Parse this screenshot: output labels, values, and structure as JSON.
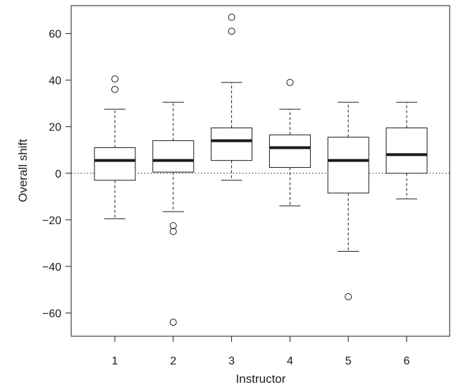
{
  "chart_data": {
    "type": "box",
    "title": "",
    "xlabel": "Instructor",
    "ylabel": "Overall shift",
    "ylim": [
      -70,
      72
    ],
    "yticks": [
      -60,
      -40,
      -20,
      0,
      20,
      40,
      60
    ],
    "ytick_labels": [
      "−60",
      "−40",
      "−20",
      "0",
      "20",
      "40",
      "60"
    ],
    "categories": [
      "1",
      "2",
      "3",
      "4",
      "5",
      "6"
    ],
    "reference_line": {
      "y": 0,
      "style": "dotted"
    },
    "grid": false,
    "boxes": [
      {
        "category": "1",
        "whisker_low": -19.5,
        "q1": -3,
        "median": 5.5,
        "q3": 11,
        "whisker_high": 27.5,
        "outliers": [
          36,
          40.5
        ]
      },
      {
        "category": "2",
        "whisker_low": -16.5,
        "q1": 0.5,
        "median": 5.5,
        "q3": 14,
        "whisker_high": 30.5,
        "outliers": [
          -22.5,
          -25,
          -64
        ]
      },
      {
        "category": "3",
        "whisker_low": -3,
        "q1": 5.5,
        "median": 14,
        "q3": 19.5,
        "whisker_high": 39,
        "outliers": [
          61,
          67
        ]
      },
      {
        "category": "4",
        "whisker_low": -14,
        "q1": 2.5,
        "median": 11,
        "q3": 16.5,
        "whisker_high": 27.5,
        "outliers": [
          39
        ]
      },
      {
        "category": "5",
        "whisker_low": -33.5,
        "q1": -8.5,
        "median": 5.5,
        "q3": 15.5,
        "whisker_high": 30.5,
        "outliers": [
          -53
        ]
      },
      {
        "category": "6",
        "whisker_low": -11,
        "q1": 0,
        "median": 8,
        "q3": 19.5,
        "whisker_high": 30.5,
        "outliers": []
      }
    ]
  }
}
